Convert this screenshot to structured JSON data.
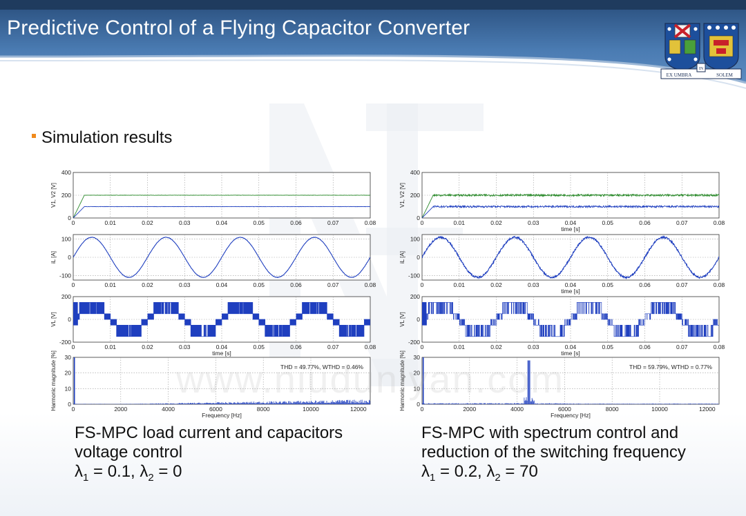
{
  "slide": {
    "title": "Predictive Control of a Flying Capacitor Converter",
    "bullet": "Simulation results",
    "watermark": "www.niuduniyan.com",
    "logo": {
      "motto_left": "EX UMBRA",
      "motto_mid": "IN",
      "motto_right": "SOLEM"
    }
  },
  "figures": [
    {
      "caption": {
        "line1": "FS-MPC load current and capacitors",
        "line2": "voltage control",
        "lambda1_sym": "λ",
        "lambda1_sub": "1",
        "lambda1_rest": " = 0.1, ",
        "lambda2_sym": "λ",
        "lambda2_sub": "2",
        "lambda2_rest": " = 0"
      }
    },
    {
      "caption": {
        "line1": "FS-MPC with spectrum control and",
        "line2": "reduction of the switching frequency",
        "lambda1_sym": "λ",
        "lambda1_sub": "1",
        "lambda1_rest": " = 0.2, ",
        "lambda2_sym": "λ",
        "lambda2_sub": "2",
        "lambda2_rest": " = 70"
      }
    }
  ],
  "chart_data": [
    {
      "type": "line",
      "figure": "left",
      "ylabel": "V1, V2 [V]",
      "xlabel": "",
      "xlim": [
        0,
        0.08
      ],
      "ylim": [
        0,
        400
      ],
      "xticks": [
        "0",
        "0.01",
        "0.02",
        "0.03",
        "0.04",
        "0.05",
        "0.06",
        "0.07",
        "0.08"
      ],
      "yticks": [
        "0",
        "200",
        "400"
      ],
      "series": [
        {
          "color": "#2b8a2b",
          "steady_value": 200,
          "ripple": 1.5,
          "rise_time": 0.003
        },
        {
          "color": "#1f3fbf",
          "steady_value": 100,
          "ripple": 1.5,
          "rise_time": 0.003
        }
      ]
    },
    {
      "type": "line",
      "figure": "left",
      "ylabel": "iL [A]",
      "xlabel": "",
      "xlim": [
        0,
        0.08
      ],
      "ylim": [
        -125,
        125
      ],
      "xticks": [
        "0",
        "0.01",
        "0.02",
        "0.03",
        "0.04",
        "0.05",
        "0.06",
        "0.07",
        "0.08"
      ],
      "yticks": [
        "-100",
        "0",
        "100"
      ],
      "series": [
        {
          "color": "#1f3fbf",
          "amplitude": 110,
          "frequency_hz": 50,
          "noise": 1
        }
      ]
    },
    {
      "type": "line",
      "figure": "left",
      "ylabel": "VL [V]",
      "xlabel": "time [s]",
      "xlim": [
        0,
        0.08
      ],
      "ylim": [
        -200,
        200
      ],
      "xticks": [
        "0",
        "0.01",
        "0.02",
        "0.03",
        "0.04",
        "0.05",
        "0.06",
        "0.07",
        "0.08"
      ],
      "yticks": [
        "-200",
        "0",
        "200"
      ],
      "series": [
        {
          "color": "#1f3fbf",
          "levels": [
            -150,
            -50,
            0,
            50,
            150
          ],
          "frequency_hz": 50,
          "mode": "dense"
        }
      ]
    },
    {
      "type": "bar",
      "figure": "left",
      "ylabel": "Harmonic magnitude [%]",
      "xlabel": "Frequency [Hz]",
      "xlim": [
        0,
        12500
      ],
      "ylim": [
        0,
        30
      ],
      "xticks": [
        "0",
        "2000",
        "4000",
        "6000",
        "8000",
        "10000",
        "12000"
      ],
      "yticks": [
        "0",
        "10",
        "20",
        "30"
      ],
      "annotation": "THD = 49.77%, WTHD = 0.46%",
      "series": [
        {
          "color": "#1f3fbf",
          "fundamental_hz": 50,
          "fundamental_value": 30,
          "spectrum": "spread"
        }
      ]
    },
    {
      "type": "line",
      "figure": "right",
      "ylabel": "V1, V2 [V]",
      "xlabel": "time [s]",
      "xlim": [
        0,
        0.08
      ],
      "ylim": [
        0,
        400
      ],
      "xticks": [
        "0",
        "0.01",
        "0.02",
        "0.03",
        "0.04",
        "0.05",
        "0.06",
        "0.07",
        "0.08"
      ],
      "yticks": [
        "0",
        "200",
        "400"
      ],
      "series": [
        {
          "color": "#2b8a2b",
          "steady_value": 200,
          "ripple": 8,
          "rise_time": 0.003
        },
        {
          "color": "#1f3fbf",
          "steady_value": 100,
          "ripple": 8,
          "rise_time": 0.003
        }
      ]
    },
    {
      "type": "line",
      "figure": "right",
      "ylabel": "iL [A]",
      "xlabel": "time [s]",
      "xlim": [
        0,
        0.08
      ],
      "ylim": [
        -125,
        125
      ],
      "xticks": [
        "0",
        "0.01",
        "0.02",
        "0.03",
        "0.04",
        "0.05",
        "0.06",
        "0.07",
        "0.08"
      ],
      "yticks": [
        "-100",
        "0",
        "100"
      ],
      "series": [
        {
          "color": "#1f3fbf",
          "amplitude": 110,
          "frequency_hz": 50,
          "noise": 5
        }
      ]
    },
    {
      "type": "line",
      "figure": "right",
      "ylabel": "VL [V]",
      "xlabel": "time [s]",
      "xlim": [
        0,
        0.08
      ],
      "ylim": [
        -200,
        200
      ],
      "xticks": [
        "0",
        "0.01",
        "0.02",
        "0.03",
        "0.04",
        "0.05",
        "0.06",
        "0.07",
        "0.08"
      ],
      "yticks": [
        "-200",
        "0",
        "200"
      ],
      "series": [
        {
          "color": "#1f3fbf",
          "levels": [
            -150,
            -50,
            0,
            50,
            150
          ],
          "frequency_hz": 50,
          "mode": "sparse"
        }
      ]
    },
    {
      "type": "bar",
      "figure": "right",
      "ylabel": "Harmonic magnitude [%]",
      "xlabel": "Frequency [Hz]",
      "xlim": [
        0,
        12500
      ],
      "ylim": [
        0,
        30
      ],
      "xticks": [
        "0",
        "2000",
        "4000",
        "6000",
        "8000",
        "10000",
        "12000"
      ],
      "yticks": [
        "0",
        "10",
        "20",
        "30"
      ],
      "annotation": "THD = 59.79%, WTHD = 0.77%",
      "series": [
        {
          "color": "#1f3fbf",
          "fundamental_hz": 50,
          "fundamental_value": 30,
          "spectrum": "peak",
          "peak_hz": 4500,
          "peak_value": 28
        }
      ]
    }
  ],
  "colors": {
    "header_blue": "#3f6fa5",
    "header_dark": "#27496f",
    "bullet_orange": "#f08a1c",
    "trace_blue": "#1f3fbf",
    "trace_green": "#2b8a2b"
  }
}
